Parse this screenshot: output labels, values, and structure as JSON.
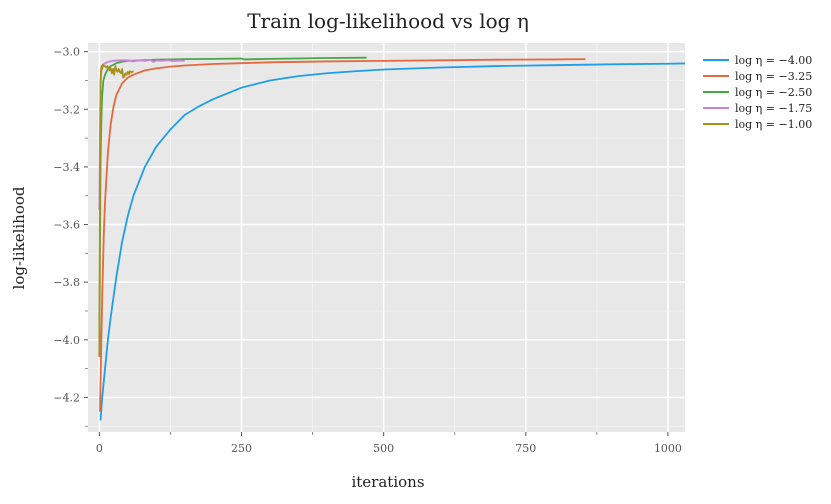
{
  "chart_data": {
    "type": "line",
    "title": "Train log-likelihood vs log η",
    "xlabel": "iterations",
    "ylabel": "log-likelihood",
    "xlim": [
      -20,
      1030
    ],
    "ylim": [
      -4.32,
      -2.97
    ],
    "xticks": [
      0,
      250,
      500,
      750,
      1000
    ],
    "xtick_labels": [
      "0",
      "250",
      "500",
      "750",
      "1000"
    ],
    "x_minor_ticks": [
      125,
      375,
      625,
      875
    ],
    "yticks": [
      -4.2,
      -4.0,
      -3.8,
      -3.6,
      -3.4,
      -3.2,
      -3.0
    ],
    "ytick_labels": [
      "−4.2",
      "−4.0",
      "−3.8",
      "−3.6",
      "−3.4",
      "−3.2",
      "−3.0"
    ],
    "y_minor_ticks": [
      -4.3,
      -4.1,
      -3.9,
      -3.7,
      -3.5,
      -3.3,
      -3.1
    ],
    "grid": true,
    "legend_position": "outside-right",
    "series": [
      {
        "name": "log η = −4.00",
        "color": "#1f9ee8",
        "x": [
          2,
          5,
          10,
          15,
          20,
          30,
          40,
          50,
          60,
          80,
          100,
          125,
          150,
          175,
          200,
          250,
          300,
          350,
          400,
          450,
          500,
          600,
          700,
          800,
          900,
          1000,
          1030
        ],
        "y": [
          -4.28,
          -4.2,
          -4.1,
          -4.0,
          -3.92,
          -3.78,
          -3.66,
          -3.57,
          -3.5,
          -3.4,
          -3.33,
          -3.27,
          -3.22,
          -3.19,
          -3.165,
          -3.125,
          -3.1,
          -3.085,
          -3.075,
          -3.068,
          -3.062,
          -3.055,
          -3.05,
          -3.047,
          -3.044,
          -3.042,
          -3.041
        ]
      },
      {
        "name": "log η = −3.25",
        "color": "#e5683f",
        "x": [
          1,
          3,
          5,
          8,
          10,
          15,
          20,
          25,
          30,
          40,
          50,
          60,
          80,
          100,
          125,
          150,
          200,
          250,
          300,
          400,
          500,
          600,
          700,
          800,
          855
        ],
        "y": [
          -4.25,
          -4.05,
          -3.85,
          -3.62,
          -3.52,
          -3.35,
          -3.25,
          -3.19,
          -3.15,
          -3.11,
          -3.09,
          -3.08,
          -3.065,
          -3.058,
          -3.052,
          -3.048,
          -3.043,
          -3.04,
          -3.037,
          -3.034,
          -3.032,
          -3.03,
          -3.028,
          -3.027,
          -3.026
        ]
      },
      {
        "name": "log η = −2.50",
        "color": "#4aa548",
        "x": [
          0,
          1,
          2,
          3,
          4,
          5,
          7,
          10,
          15,
          20,
          30,
          40,
          50,
          75,
          100,
          150,
          200,
          250,
          255,
          300,
          400,
          470
        ],
        "y": [
          -4.05,
          -3.7,
          -3.4,
          -3.28,
          -3.2,
          -3.15,
          -3.1,
          -3.08,
          -3.06,
          -3.05,
          -3.04,
          -3.035,
          -3.032,
          -3.03,
          -3.028,
          -3.026,
          -3.025,
          -3.024,
          -3.027,
          -3.025,
          -3.022,
          -3.021
        ]
      },
      {
        "name": "log η = −1.75",
        "color": "#c986d6",
        "x": [
          0,
          1,
          2,
          3,
          4,
          5,
          7,
          10,
          15,
          20,
          30,
          40,
          50,
          60,
          70,
          80,
          90,
          95,
          100,
          110,
          120,
          130,
          140,
          150
        ],
        "y": [
          -3.55,
          -3.3,
          -3.12,
          -3.08,
          -3.06,
          -3.05,
          -3.045,
          -3.04,
          -3.036,
          -3.033,
          -3.031,
          -3.03,
          -3.03,
          -3.034,
          -3.03,
          -3.032,
          -3.029,
          -3.036,
          -3.031,
          -3.032,
          -3.03,
          -3.033,
          -3.031,
          -3.032
        ]
      },
      {
        "name": "log η = −1.00",
        "color": "#a6921c",
        "x": [
          0,
          1,
          2,
          3,
          4,
          5,
          6,
          8,
          10,
          12,
          14,
          16,
          18,
          20,
          22,
          24,
          26,
          28,
          30,
          32,
          34,
          36,
          38,
          40,
          42,
          44,
          46,
          48,
          50,
          52,
          54,
          56,
          58,
          60
        ],
        "y": [
          -4.06,
          -3.45,
          -3.1,
          -3.06,
          -3.05,
          -3.06,
          -3.045,
          -3.05,
          -3.05,
          -3.055,
          -3.05,
          -3.06,
          -3.065,
          -3.058,
          -3.075,
          -3.06,
          -3.08,
          -3.05,
          -3.065,
          -3.07,
          -3.06,
          -3.07,
          -3.075,
          -3.06,
          -3.09,
          -3.085,
          -3.075,
          -3.08,
          -3.07,
          -3.078,
          -3.068,
          -3.072,
          -3.07,
          -3.068
        ]
      }
    ]
  }
}
